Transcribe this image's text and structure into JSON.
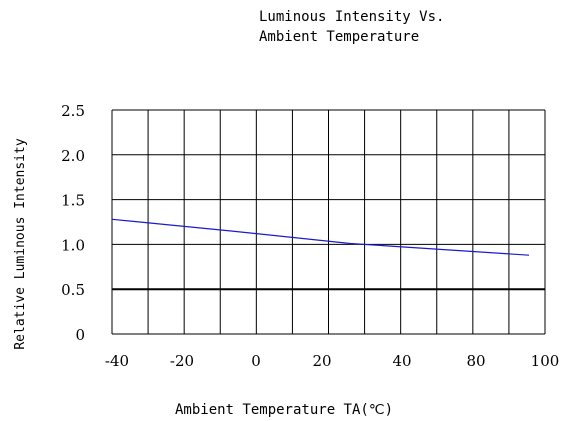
{
  "chart_data": {
    "type": "line",
    "title_line1": "Luminous Intensity Vs.",
    "title_line2": "Ambient Temperature",
    "xlabel": "Ambient Temperature TA(℃)",
    "ylabel": "Relative Luminous Intensity",
    "x_ticks": [
      "-40",
      "-20",
      "0",
      "20",
      "40",
      "80",
      "100"
    ],
    "y_ticks": [
      "0",
      "0.5",
      "1.0",
      "1.5",
      "2.0",
      "2.5"
    ],
    "ylim": [
      0,
      2.5
    ],
    "grid": true,
    "series": [
      {
        "color": "#1a1acc",
        "points": [
          {
            "x": -40,
            "y": 1.28
          },
          {
            "x": 0,
            "y": 1.15
          },
          {
            "x": 40,
            "y": 1.01
          },
          {
            "x": 100,
            "y": 0.88
          }
        ]
      }
    ]
  }
}
